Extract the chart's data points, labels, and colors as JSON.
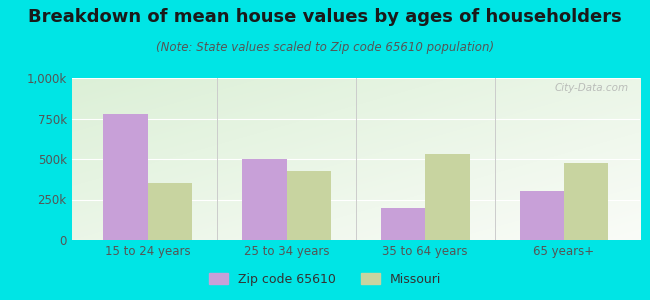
{
  "title": "Breakdown of mean house values by ages of householders",
  "subtitle": "(Note: State values scaled to Zip code 65610 population)",
  "categories": [
    "15 to 24 years",
    "25 to 34 years",
    "35 to 64 years",
    "65 years+"
  ],
  "zip_values": [
    775000,
    500000,
    200000,
    305000
  ],
  "state_values": [
    350000,
    425000,
    530000,
    475000
  ],
  "zip_color": "#c8a0d8",
  "state_color": "#c8d4a0",
  "background_outer": "#00e5e5",
  "ylim": [
    0,
    1000000
  ],
  "yticks": [
    0,
    250000,
    500000,
    750000,
    1000000
  ],
  "ytick_labels": [
    "0",
    "250k",
    "500k",
    "750k",
    "1,000k"
  ],
  "legend_zip_label": "Zip code 65610",
  "legend_state_label": "Missouri",
  "bar_width": 0.32,
  "title_fontsize": 13,
  "subtitle_fontsize": 8.5,
  "axis_fontsize": 8.5,
  "legend_fontsize": 9,
  "watermark_text": "City-Data.com"
}
